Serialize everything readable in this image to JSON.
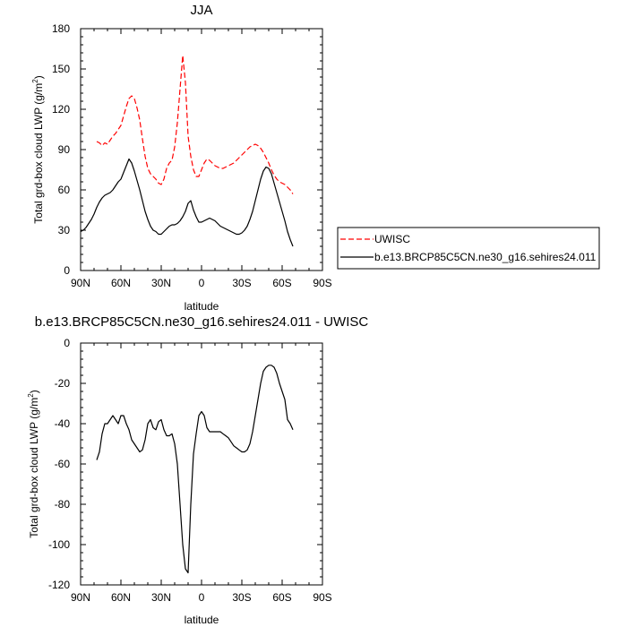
{
  "chart_data": [
    {
      "type": "line",
      "title": "JJA",
      "xlabel": "latitude",
      "ylabel_main": "Total grd-box cloud LWP (g/m",
      "ylabel_sup": "2",
      "ylabel_end": ")",
      "xlim": [
        -90,
        90
      ],
      "ylim": [
        0,
        180
      ],
      "xticks": [
        -90,
        -60,
        -30,
        0,
        30,
        60,
        90
      ],
      "xtick_labels": [
        "90N",
        "60N",
        "30N",
        "0",
        "30S",
        "60S",
        "90S"
      ],
      "yticks": [
        0,
        30,
        60,
        90,
        120,
        150,
        180
      ],
      "ytick_labels": [
        "0",
        "30",
        "60",
        "90",
        "120",
        "150",
        "180"
      ],
      "grid": false,
      "legend_position": "right",
      "series": [
        {
          "name": "UWISC",
          "color": "#ff0000",
          "dash": "dashed",
          "x": [
            -78,
            -76,
            -74,
            -72,
            -70,
            -68,
            -66,
            -64,
            -62,
            -60,
            -58,
            -56,
            -54,
            -52,
            -50,
            -48,
            -46,
            -44,
            -42,
            -40,
            -38,
            -36,
            -34,
            -32,
            -30,
            -28,
            -26,
            -24,
            -22,
            -20,
            -18,
            -16,
            -14,
            -12,
            -10,
            -8,
            -6,
            -4,
            -2,
            0,
            2,
            4,
            6,
            8,
            10,
            12,
            14,
            16,
            18,
            20,
            22,
            24,
            26,
            28,
            30,
            32,
            34,
            36,
            38,
            40,
            42,
            44,
            46,
            48,
            50,
            52,
            54,
            56,
            58,
            60,
            62,
            64,
            66,
            68
          ],
          "y": [
            96,
            95,
            93,
            95,
            94,
            97,
            100,
            102,
            105,
            108,
            115,
            122,
            128,
            130,
            128,
            121,
            112,
            98,
            85,
            76,
            72,
            70,
            68,
            65,
            64,
            68,
            76,
            80,
            82,
            92,
            110,
            135,
            160,
            140,
            100,
            85,
            75,
            70,
            70,
            75,
            80,
            83,
            82,
            80,
            78,
            77,
            76,
            76,
            77,
            78,
            79,
            80,
            82,
            84,
            86,
            88,
            90,
            92,
            93,
            94,
            93,
            91,
            88,
            84,
            80,
            75,
            71,
            68,
            66,
            65,
            64,
            62,
            60,
            57
          ]
        },
        {
          "name": "b.e13.BRCP85C5CN.ne30_g16.sehires24.011",
          "color": "#000000",
          "dash": "solid",
          "x": [
            -90,
            -88,
            -86,
            -84,
            -82,
            -80,
            -78,
            -76,
            -74,
            -72,
            -70,
            -68,
            -66,
            -64,
            -62,
            -60,
            -58,
            -56,
            -54,
            -52,
            -50,
            -48,
            -46,
            -44,
            -42,
            -40,
            -38,
            -36,
            -34,
            -32,
            -30,
            -28,
            -26,
            -24,
            -22,
            -20,
            -18,
            -16,
            -14,
            -12,
            -10,
            -8,
            -6,
            -4,
            -2,
            0,
            2,
            4,
            6,
            8,
            10,
            12,
            14,
            16,
            18,
            20,
            22,
            24,
            26,
            28,
            30,
            32,
            34,
            36,
            38,
            40,
            42,
            44,
            46,
            48,
            50,
            52,
            54,
            56,
            58,
            60,
            62,
            64,
            66,
            68
          ],
          "y": [
            29,
            30,
            32,
            35,
            38,
            42,
            47,
            51,
            54,
            56,
            57,
            58,
            60,
            63,
            66,
            68,
            73,
            78,
            83,
            80,
            74,
            67,
            60,
            52,
            44,
            38,
            33,
            30,
            29,
            27,
            27,
            29,
            31,
            33,
            34,
            34,
            35,
            37,
            40,
            44,
            50,
            52,
            45,
            40,
            36,
            36,
            37,
            38,
            39,
            38,
            37,
            35,
            33,
            32,
            31,
            30,
            29,
            28,
            27,
            27,
            28,
            30,
            33,
            38,
            44,
            52,
            60,
            68,
            74,
            77,
            76,
            72,
            65,
            58,
            51,
            44,
            37,
            29,
            23,
            18
          ]
        }
      ]
    },
    {
      "type": "line",
      "title": "b.e13.BRCP85C5CN.ne30_g16.sehires24.011 - UWISC",
      "xlabel": "latitude",
      "ylabel_main": "Total grd-box cloud LWP (g/m",
      "ylabel_sup": "2",
      "ylabel_end": ")",
      "xlim": [
        -90,
        90
      ],
      "ylim": [
        -120,
        0
      ],
      "xticks": [
        -90,
        -60,
        -30,
        0,
        30,
        60,
        90
      ],
      "xtick_labels": [
        "90N",
        "60N",
        "30N",
        "0",
        "30S",
        "60S",
        "90S"
      ],
      "yticks": [
        -120,
        -100,
        -80,
        -60,
        -40,
        -20,
        0
      ],
      "ytick_labels": [
        "-120",
        "-100",
        "-80",
        "-60",
        "-40",
        "-20",
        "0"
      ],
      "grid": false,
      "series": [
        {
          "color": "#000000",
          "dash": "solid",
          "x": [
            -78,
            -76,
            -74,
            -72,
            -70,
            -68,
            -66,
            -64,
            -62,
            -60,
            -58,
            -56,
            -54,
            -52,
            -50,
            -48,
            -46,
            -44,
            -42,
            -40,
            -38,
            -36,
            -34,
            -32,
            -30,
            -28,
            -26,
            -24,
            -22,
            -20,
            -18,
            -16,
            -14,
            -12,
            -10,
            -8,
            -6,
            -4,
            -2,
            0,
            2,
            4,
            6,
            8,
            10,
            12,
            14,
            16,
            18,
            20,
            22,
            24,
            26,
            28,
            30,
            32,
            34,
            36,
            38,
            40,
            42,
            44,
            46,
            48,
            50,
            52,
            54,
            56,
            58,
            60,
            62,
            64,
            66,
            68
          ],
          "y": [
            -58,
            -54,
            -45,
            -40,
            -40,
            -38,
            -36,
            -38,
            -40,
            -36,
            -36,
            -40,
            -43,
            -48,
            -50,
            -52,
            -54,
            -53,
            -48,
            -40,
            -38,
            -42,
            -43,
            -39,
            -38,
            -43,
            -46,
            -46,
            -45,
            -50,
            -60,
            -80,
            -100,
            -112,
            -114,
            -80,
            -55,
            -45,
            -36,
            -34,
            -36,
            -42,
            -44,
            -44,
            -44,
            -44,
            -44,
            -45,
            -46,
            -47,
            -49,
            -51,
            -52,
            -53,
            -54,
            -54,
            -53,
            -50,
            -44,
            -36,
            -28,
            -20,
            -14,
            -12,
            -11,
            -11,
            -12,
            -15,
            -20,
            -24,
            -28,
            -38,
            -40,
            -43
          ]
        }
      ]
    }
  ]
}
